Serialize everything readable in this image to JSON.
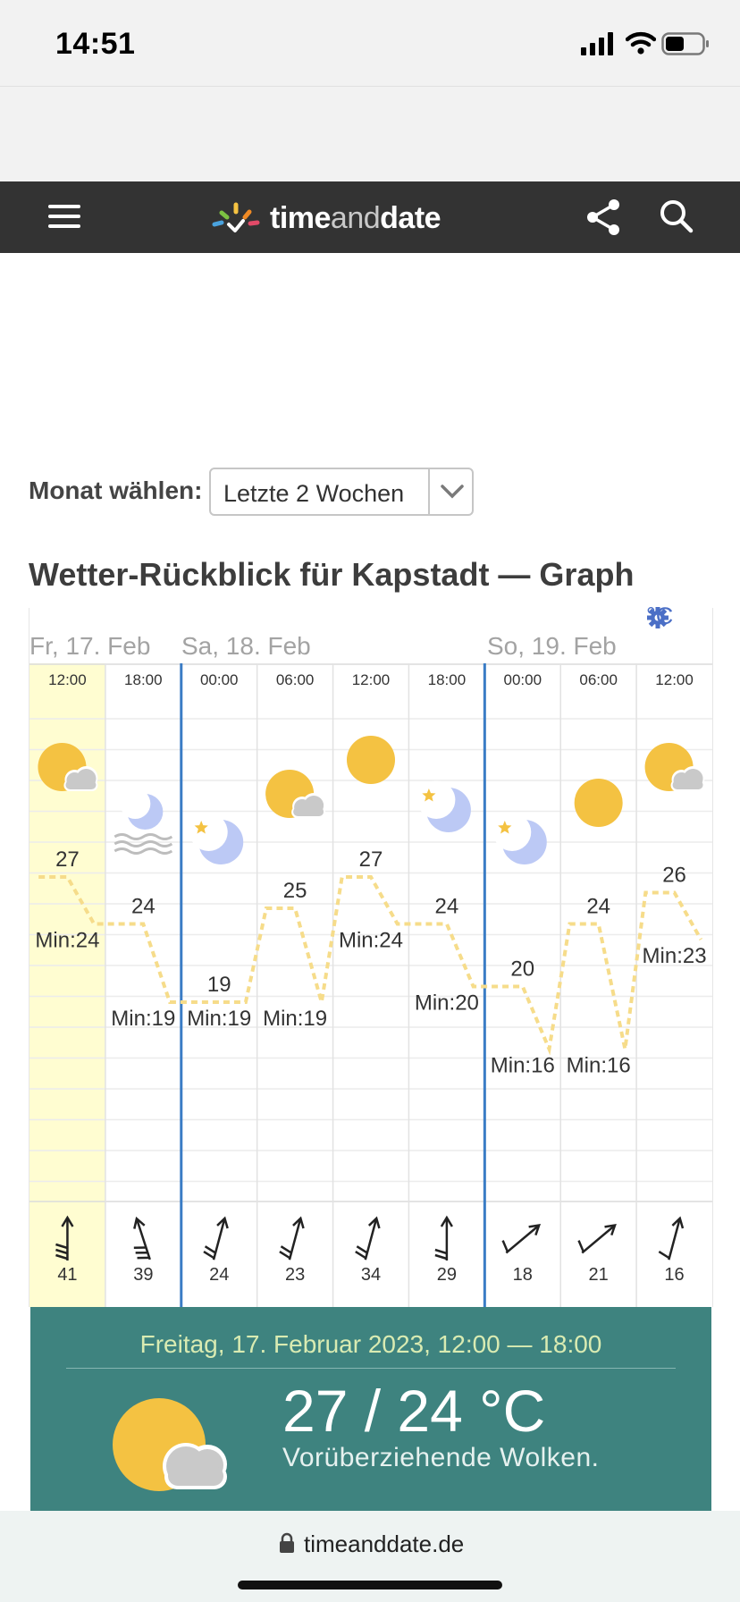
{
  "status": {
    "time": "14:51"
  },
  "nav": {
    "brand_time": "time",
    "brand_and": "and",
    "brand_date": "date"
  },
  "selector": {
    "label": "Monat wählen:",
    "value": "Letzte 2 Wochen"
  },
  "title": "Wetter-Rückblick für Kapstadt — Graph",
  "graph": {
    "unit": "°C",
    "days": [
      {
        "label": "Fr, 17. Feb"
      },
      {
        "label": "Sa, 18. Feb"
      },
      {
        "label": "So, 19. Feb"
      }
    ],
    "columns": [
      {
        "time": "12:00",
        "icon": "sun-cloud-icon",
        "high": "27",
        "low": "Min:24",
        "wind": "41",
        "wind_dir": "n",
        "selected": true
      },
      {
        "time": "18:00",
        "icon": "moon-fog-icon",
        "high": "24",
        "low": "Min:19",
        "wind": "39",
        "wind_dir": "nnw"
      },
      {
        "time": "00:00",
        "icon": "moon-star-icon",
        "high": "19",
        "low": "Min:19",
        "wind": "24",
        "wind_dir": "nne"
      },
      {
        "time": "06:00",
        "icon": "sun-cloud-icon",
        "high": "25",
        "low": "Min:19",
        "wind": "23",
        "wind_dir": "nne"
      },
      {
        "time": "12:00",
        "icon": "sun-icon",
        "high": "27",
        "low": "Min:24",
        "wind": "34",
        "wind_dir": "nne"
      },
      {
        "time": "18:00",
        "icon": "moon-star-icon",
        "high": "24",
        "low": "Min:20",
        "wind": "29",
        "wind_dir": "n"
      },
      {
        "time": "00:00",
        "icon": "moon-star-icon",
        "high": "20",
        "low": "Min:16",
        "wind": "18",
        "wind_dir": "ne"
      },
      {
        "time": "06:00",
        "icon": "sun-icon",
        "high": "24",
        "low": "Min:16",
        "wind": "21",
        "wind_dir": "ne"
      },
      {
        "time": "12:00",
        "icon": "sun-cloud-icon",
        "high": "26",
        "low": "Min:23",
        "wind": "16",
        "wind_dir": "nne"
      }
    ]
  },
  "detail": {
    "date": "Freitag, 17. Februar 2023, 12:00 — 18:00",
    "temp": "27 / 24 °C",
    "description": "Vorüberziehende Wolken."
  },
  "url_bar": {
    "domain": "timeanddate.de"
  },
  "colors": {
    "nav": "#333333",
    "panel": "#3e837f",
    "sun": "#f4c242",
    "moon": "#bcc9f5",
    "highlight": "#fffdd1",
    "day_divider": "#3a7cc5"
  }
}
